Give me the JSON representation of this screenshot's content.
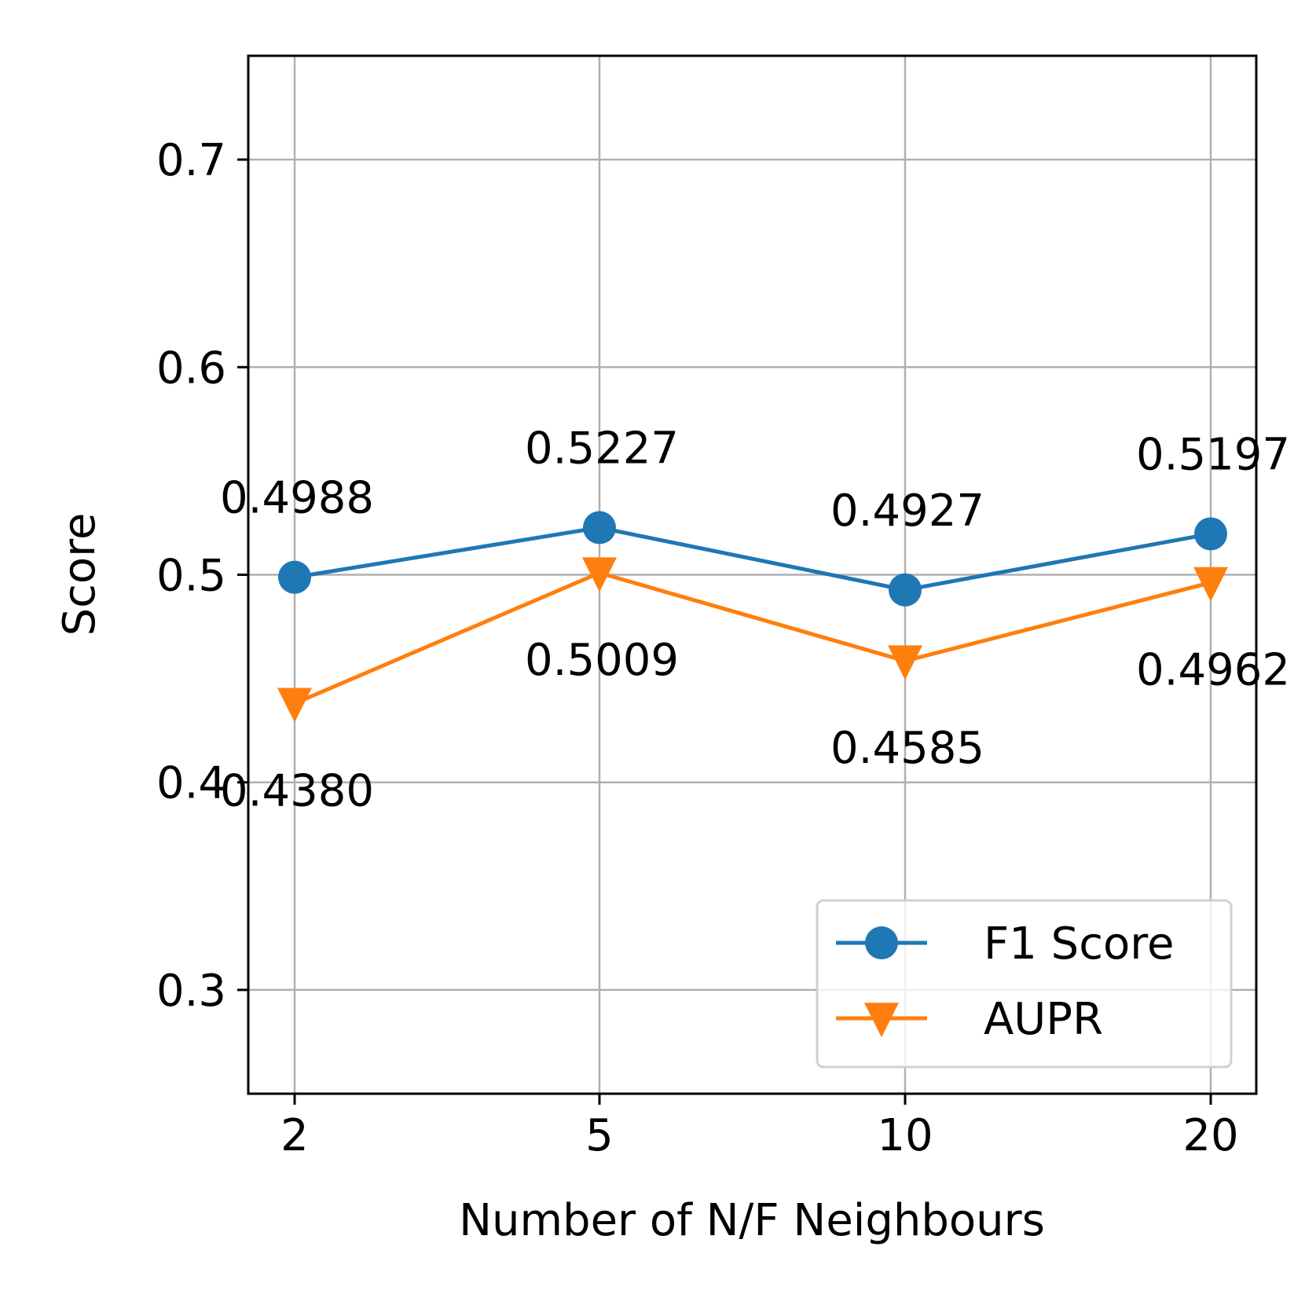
{
  "chart_data": {
    "type": "line",
    "title": "",
    "xlabel": "Number of N/F Neighbours",
    "ylabel": "Score",
    "categories": [
      "2",
      "5",
      "10",
      "20"
    ],
    "ylim": [
      0.25,
      0.75
    ],
    "yticks": [
      0.3,
      0.4,
      0.5,
      0.6,
      0.7
    ],
    "ytick_labels": [
      "0.3",
      "0.4",
      "0.5",
      "0.6",
      "0.7"
    ],
    "grid": true,
    "legend_position": "lower right",
    "series": [
      {
        "name": "F1 Score",
        "color": "#1f77b4",
        "marker": "circle",
        "values": [
          0.4988,
          0.5227,
          0.4927,
          0.5197
        ],
        "labels": [
          "0.4988",
          "0.5227",
          "0.4927",
          "0.5197"
        ],
        "label_position": "above"
      },
      {
        "name": "AUPR",
        "color": "#ff7f0e",
        "marker": "triangle-down",
        "values": [
          0.438,
          0.5009,
          0.4585,
          0.4962
        ],
        "labels": [
          "0.4380",
          "0.5009",
          "0.4585",
          "0.4962"
        ],
        "label_position": "below"
      }
    ]
  }
}
